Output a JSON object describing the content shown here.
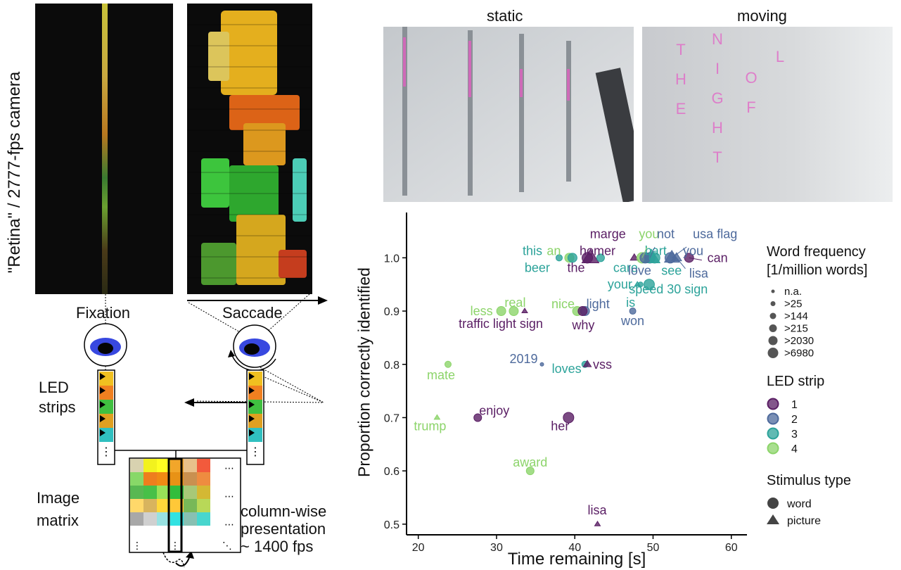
{
  "left_panel": {
    "retina_label": "\"Retina\" / 2777-fps camera",
    "fixation_label": "Fixation",
    "saccade_label": "Saccade",
    "led_strips_label": [
      "LED",
      "strips"
    ],
    "image_matrix_label": [
      "Image",
      "matrix"
    ],
    "presentation_label": [
      "column-wise",
      "presentation",
      "~ 1400 fps"
    ],
    "matrix_colors": [
      [
        "#d8d2b0",
        "#f2f21e",
        "#ffff22",
        "#f2a62a",
        "#e8c08a",
        "#f25a3c"
      ],
      [
        "#88d868",
        "#ee7e1e",
        "#f08a14",
        "#e89216",
        "#c99050",
        "#ee8c40"
      ],
      [
        "#58b852",
        "#48c048",
        "#98e258",
        "#32bd3c",
        "#a7c878",
        "#d4b834"
      ],
      [
        "#ffd86a",
        "#d8b45e",
        "#ffd83a",
        "#ffc838",
        "#78b858",
        "#b8d858"
      ],
      [
        "#a8a8a8",
        "#d0d0d0",
        "#98e2e2",
        "#32e2e2",
        "#88c0b2",
        "#48d6ce"
      ]
    ],
    "led_colors": [
      "#f0c020",
      "#f08020",
      "#40c040",
      "#e0a020",
      "#30c0c0"
    ]
  },
  "top_photos": {
    "static_label": "static",
    "moving_label": "moving",
    "moving_letters": [
      "T",
      "H",
      "E",
      "N",
      "I",
      "G",
      "H",
      "T",
      "O",
      "F",
      "L"
    ]
  },
  "chart_data": {
    "type": "scatter",
    "xlabel": "Time remaining [s]",
    "ylabel": "Proportion correctly identified",
    "xlim": [
      18.5,
      62
    ],
    "ylim": [
      0.48,
      1.085
    ],
    "xticks": [
      "20",
      "30",
      "40",
      "50",
      "60"
    ],
    "yticks": [
      "0.5",
      "0.6",
      "0.7",
      "0.8",
      "0.9",
      "1.0"
    ],
    "grid": false,
    "strip_colors": {
      "1": "#5a1e64",
      "2": "#4e6a9c",
      "3": "#2ca39a",
      "4": "#8cd46a"
    },
    "points": [
      {
        "label": "marge",
        "x": 47.6,
        "y": 1.0,
        "strip": "1",
        "size": 2,
        "shape": "picture"
      },
      {
        "label": "you",
        "x": 48.6,
        "y": 1.0,
        "strip": "4",
        "size": 6,
        "shape": "word"
      },
      {
        "label": "not",
        "x": 49.6,
        "y": 1.0,
        "strip": "2",
        "size": 6,
        "shape": "word"
      },
      {
        "label": "usa flag",
        "x": 52.4,
        "y": 1.0,
        "strip": "2",
        "size": 5,
        "shape": "picture"
      },
      {
        "label": "this",
        "x": 38.0,
        "y": 1.0,
        "strip": "3",
        "size": 3,
        "shape": "word"
      },
      {
        "label": "an",
        "x": 39.3,
        "y": 1.0,
        "strip": "4",
        "size": 5,
        "shape": "word"
      },
      {
        "label": "homer",
        "x": 42.0,
        "y": 1.0,
        "strip": "1",
        "size": 6,
        "shape": "picture"
      },
      {
        "label": "bart",
        "x": 49.8,
        "y": 1.0,
        "strip": "3",
        "size": 6,
        "shape": "picture"
      },
      {
        "label": "you",
        "x": 52.2,
        "y": 1.0,
        "strip": "2",
        "size": 6,
        "shape": "word"
      },
      {
        "label": "can",
        "x": 54.6,
        "y": 1.0,
        "strip": "1",
        "size": 5,
        "shape": "word"
      },
      {
        "label": "beer",
        "x": 39.7,
        "y": 1.0,
        "strip": "3",
        "size": 5,
        "shape": "word"
      },
      {
        "label": "the",
        "x": 41.6,
        "y": 1.0,
        "strip": "1",
        "size": 6,
        "shape": "word"
      },
      {
        "label": "care",
        "x": 43.3,
        "y": 1.0,
        "strip": "3",
        "size": 4,
        "shape": "word"
      },
      {
        "label": "love",
        "x": 49.0,
        "y": 1.0,
        "strip": "2",
        "size": 6,
        "shape": "word"
      },
      {
        "label": "see",
        "x": 50.2,
        "y": 1.0,
        "strip": "3",
        "size": 6,
        "shape": "word"
      },
      {
        "label": "lisa",
        "x": 53.0,
        "y": 1.0,
        "strip": "2",
        "size": 3,
        "shape": "picture"
      },
      {
        "label": "your",
        "x": 49.5,
        "y": 0.95,
        "strip": "3",
        "size": 6,
        "shape": "word"
      },
      {
        "label": "speed 30 sign",
        "x": 48.0,
        "y": 0.95,
        "strip": "3",
        "size": 1,
        "shape": "picture"
      },
      {
        "label": "is",
        "x": 48.4,
        "y": 0.95,
        "strip": "3",
        "size": 2,
        "shape": "word"
      },
      {
        "label": "less",
        "x": 30.6,
        "y": 0.9,
        "strip": "4",
        "size": 5,
        "shape": "word"
      },
      {
        "label": "real",
        "x": 32.2,
        "y": 0.9,
        "strip": "4",
        "size": 5,
        "shape": "word"
      },
      {
        "label": "traffic light sign",
        "x": 33.6,
        "y": 0.9,
        "strip": "1",
        "size": 1,
        "shape": "picture"
      },
      {
        "label": "nice",
        "x": 40.3,
        "y": 0.9,
        "strip": "4",
        "size": 5,
        "shape": "word"
      },
      {
        "label": "light",
        "x": 41.3,
        "y": 0.9,
        "strip": "2",
        "size": 5,
        "shape": "word"
      },
      {
        "label": "why",
        "x": 41.0,
        "y": 0.9,
        "strip": "1",
        "size": 5,
        "shape": "word"
      },
      {
        "label": "won",
        "x": 47.4,
        "y": 0.9,
        "strip": "2",
        "size": 3,
        "shape": "word"
      },
      {
        "label": "2019",
        "x": 35.8,
        "y": 0.8,
        "strip": "2",
        "size": 1,
        "shape": "word"
      },
      {
        "label": "loves",
        "x": 41.3,
        "y": 0.8,
        "strip": "3",
        "size": 3,
        "shape": "word"
      },
      {
        "label": "vss",
        "x": 41.6,
        "y": 0.8,
        "strip": "1",
        "size": 2,
        "shape": "picture"
      },
      {
        "label": "mate",
        "x": 23.8,
        "y": 0.8,
        "strip": "4",
        "size": 3,
        "shape": "word"
      },
      {
        "label": "enjoy",
        "x": 27.6,
        "y": 0.7,
        "strip": "1",
        "size": 4,
        "shape": "word"
      },
      {
        "label": "trump",
        "x": 22.4,
        "y": 0.7,
        "strip": "4",
        "size": 1,
        "shape": "picture"
      },
      {
        "label": "her",
        "x": 39.2,
        "y": 0.7,
        "strip": "1",
        "size": 6,
        "shape": "word"
      },
      {
        "label": "award",
        "x": 34.3,
        "y": 0.6,
        "strip": "4",
        "size": 4,
        "shape": "word"
      },
      {
        "label": "lisa",
        "x": 42.9,
        "y": 0.5,
        "strip": "1",
        "size": 1,
        "shape": "picture"
      }
    ],
    "legend": {
      "frequency_title": [
        "Word frequency",
        "[1/million words]"
      ],
      "frequency_items": [
        {
          "label": "n.a.",
          "size": 1
        },
        {
          "label": ">25",
          "size": 2
        },
        {
          "label": ">144",
          "size": 3
        },
        {
          "label": ">215",
          "size": 4
        },
        {
          "label": ">2030",
          "size": 5
        },
        {
          "label": ">6980",
          "size": 6
        }
      ],
      "strip_title": "LED strip",
      "strip_items": [
        "1",
        "2",
        "3",
        "4"
      ],
      "stimulus_title": "Stimulus type",
      "stimulus_items": [
        {
          "label": "word",
          "shape": "word"
        },
        {
          "label": "picture",
          "shape": "picture"
        }
      ]
    }
  }
}
